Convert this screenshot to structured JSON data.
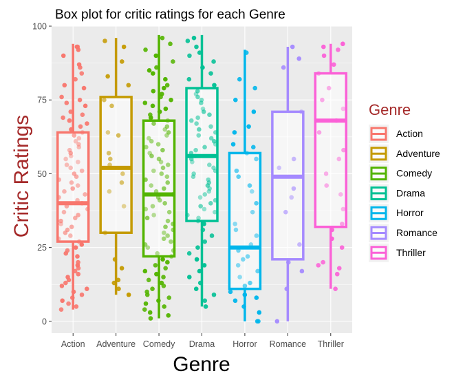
{
  "chart_data": {
    "type": "box",
    "title": "Box plot for critic ratings for each Genre",
    "xlabel": "Genre",
    "ylabel": "Critic Ratings",
    "ylim": [
      -4,
      100
    ],
    "yticks": [
      0,
      25,
      50,
      75,
      100
    ],
    "grid": true,
    "legend": {
      "title": "Genre",
      "position": "right"
    },
    "label_color": "#a52a2a",
    "background": "#ebebeb",
    "series": [
      {
        "name": "Action",
        "color": "#f8766d",
        "min": 4,
        "q1": 27,
        "median": 40,
        "q3": 64,
        "max": 94,
        "points": [
          93,
          93,
          92,
          90,
          87,
          86,
          84,
          82,
          80,
          79,
          76,
          75,
          74,
          73,
          71,
          70,
          69,
          68,
          67,
          66,
          65,
          64,
          63,
          62,
          61,
          60,
          59,
          58,
          57,
          56,
          55,
          54,
          53,
          52,
          51,
          50,
          49,
          48,
          47,
          46,
          45,
          44,
          43,
          42,
          41,
          40,
          39,
          38,
          37,
          36,
          35,
          34,
          33,
          32,
          31,
          30,
          29,
          28,
          27,
          26,
          25,
          24,
          23,
          22,
          20,
          19,
          18,
          17,
          16,
          15,
          14,
          13,
          12,
          11,
          10,
          9,
          8,
          7,
          6,
          5,
          4
        ]
      },
      {
        "name": "Adventure",
        "color": "#c49a00",
        "min": 9,
        "q1": 30,
        "median": 52,
        "q3": 76,
        "max": 96,
        "points": [
          95,
          93,
          88,
          83,
          80,
          75,
          73,
          64,
          63,
          57,
          55,
          53,
          50,
          47,
          44,
          39,
          30,
          21,
          18,
          14,
          13,
          11,
          9
        ]
      },
      {
        "name": "Comedy",
        "color": "#53b400",
        "min": 1,
        "q1": 22,
        "median": 43,
        "q3": 68,
        "max": 97,
        "points": [
          96,
          94,
          92,
          90,
          88,
          86,
          85,
          84,
          82,
          80,
          79,
          78,
          77,
          76,
          75,
          74,
          73,
          72,
          71,
          70,
          69,
          68,
          67,
          66,
          65,
          64,
          63,
          62,
          61,
          60,
          59,
          58,
          57,
          56,
          55,
          54,
          53,
          52,
          51,
          50,
          49,
          48,
          47,
          46,
          45,
          44,
          43,
          42,
          41,
          40,
          39,
          38,
          37,
          36,
          35,
          34,
          33,
          32,
          31,
          30,
          29,
          28,
          27,
          26,
          25,
          24,
          23,
          22,
          21,
          20,
          19,
          18,
          17,
          16,
          15,
          14,
          13,
          12,
          11,
          10,
          9,
          8,
          7,
          6,
          5,
          4,
          3,
          2,
          1
        ]
      },
      {
        "name": "Drama",
        "color": "#00c094",
        "min": 5,
        "q1": 34,
        "median": 56,
        "q3": 79,
        "max": 97,
        "points": [
          96,
          95,
          93,
          91,
          90,
          88,
          86,
          84,
          82,
          80,
          78,
          77,
          76,
          75,
          74,
          72,
          71,
          70,
          69,
          68,
          67,
          66,
          65,
          64,
          63,
          62,
          61,
          60,
          59,
          58,
          57,
          56,
          55,
          54,
          53,
          52,
          51,
          50,
          49,
          48,
          47,
          46,
          45,
          44,
          43,
          42,
          41,
          40,
          39,
          38,
          37,
          36,
          35,
          34,
          33,
          31,
          29,
          27,
          25,
          23,
          21,
          19,
          17,
          15,
          13,
          11,
          9,
          7,
          5
        ]
      },
      {
        "name": "Horror",
        "color": "#00b6eb",
        "min": 0,
        "q1": 11,
        "median": 25,
        "q3": 57,
        "max": 92,
        "points": [
          91,
          82,
          79,
          75,
          71,
          66,
          64,
          60,
          59,
          57,
          55,
          51,
          49,
          46,
          44,
          40,
          37,
          33,
          31,
          29,
          26,
          24,
          22,
          21,
          19,
          17,
          15,
          13,
          12,
          10,
          9,
          8,
          7,
          5,
          3,
          0,
          0
        ]
      },
      {
        "name": "Romance",
        "color": "#a58aff",
        "min": 0,
        "q1": 21,
        "median": 49,
        "q3": 71,
        "max": 93,
        "points": [
          93,
          89,
          86,
          71,
          55,
          52,
          45,
          42,
          37,
          26,
          20,
          17,
          11,
          0
        ]
      },
      {
        "name": "Thriller",
        "color": "#fb61d7",
        "min": 11,
        "q1": 32,
        "median": 68,
        "q3": 84,
        "max": 94,
        "points": [
          94,
          93,
          92,
          90,
          87,
          84,
          79,
          75,
          72,
          68,
          64,
          58,
          55,
          50,
          46,
          43,
          38,
          33,
          31,
          28,
          25,
          20,
          19,
          18,
          16,
          11
        ]
      }
    ]
  }
}
